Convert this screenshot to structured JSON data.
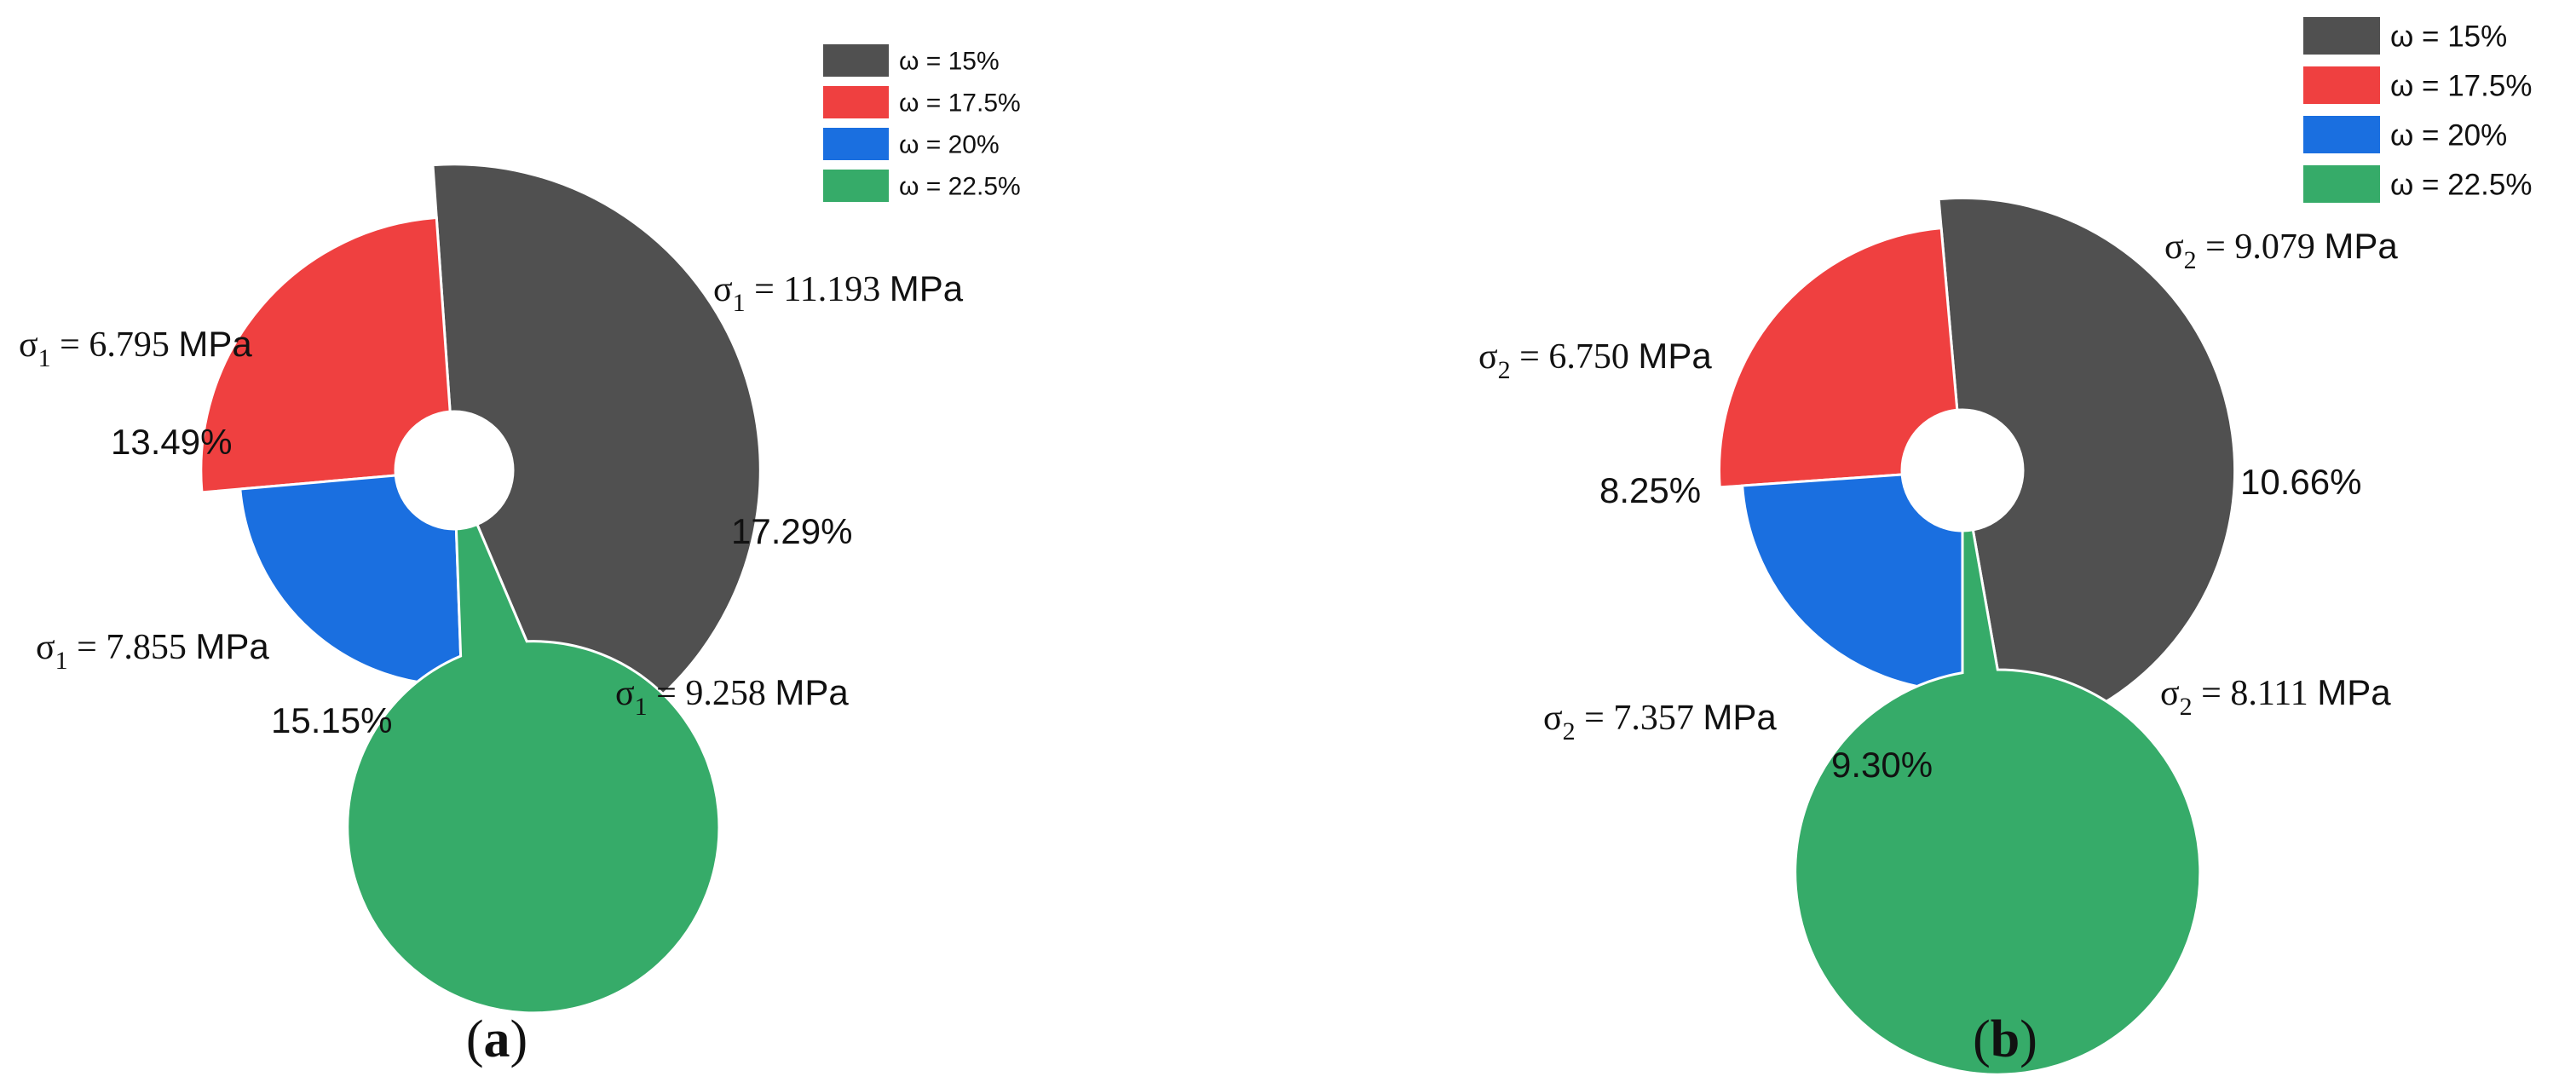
{
  "colors": {
    "w15": "#505050",
    "w17_5": "#ef4040",
    "w20": "#1a6fe0",
    "w22_5": "#36ab69"
  },
  "chart_data": [
    {
      "type": "pie",
      "variant": "rose",
      "panel_label": "a",
      "stress_symbol": "σ",
      "stress_subscript": "1",
      "unit": "MPa",
      "legend": [
        "ω = 15%",
        "ω = 17.5%",
        "ω = 20%",
        "ω = 22.5%"
      ],
      "legend_placement": "top-right",
      "slices": [
        {
          "category": "ω = 15%",
          "stress": 11.193,
          "stress_text": "11.193",
          "percent_text": "17.29%",
          "color": "#505050"
        },
        {
          "category": "ω = 17.5%",
          "stress": 9.258,
          "stress_text": "9.258",
          "percent_text": "",
          "color": "#ef4040"
        },
        {
          "category": "ω = 20%",
          "stress": 7.855,
          "stress_text": "7.855",
          "percent_text": "15.15%",
          "color": "#1a6fe0"
        },
        {
          "category": "ω = 22.5%",
          "stress": 6.795,
          "stress_text": "6.795",
          "percent_text": "13.49%",
          "color": "#36ab69"
        }
      ]
    },
    {
      "type": "pie",
      "variant": "rose",
      "panel_label": "b",
      "stress_symbol": "σ",
      "stress_subscript": "2",
      "unit": "MPa",
      "legend": [
        "ω = 15%",
        "ω = 17.5%",
        "ω = 20%",
        "ω = 22.5%"
      ],
      "legend_placement": "top-right",
      "slices": [
        {
          "category": "ω = 15%",
          "stress": 9.079,
          "stress_text": "9.079",
          "percent_text": "10.66%",
          "color": "#505050"
        },
        {
          "category": "ω = 17.5%",
          "stress": 8.111,
          "stress_text": "8.111",
          "percent_text": "",
          "color": "#ef4040"
        },
        {
          "category": "ω = 20%",
          "stress": 7.357,
          "stress_text": "7.357",
          "percent_text": "9.30%",
          "color": "#1a6fe0"
        },
        {
          "category": "ω = 22.5%",
          "stress": 6.75,
          "stress_text": "6.750",
          "percent_text": "8.25%",
          "color": "#36ab69"
        }
      ]
    }
  ]
}
